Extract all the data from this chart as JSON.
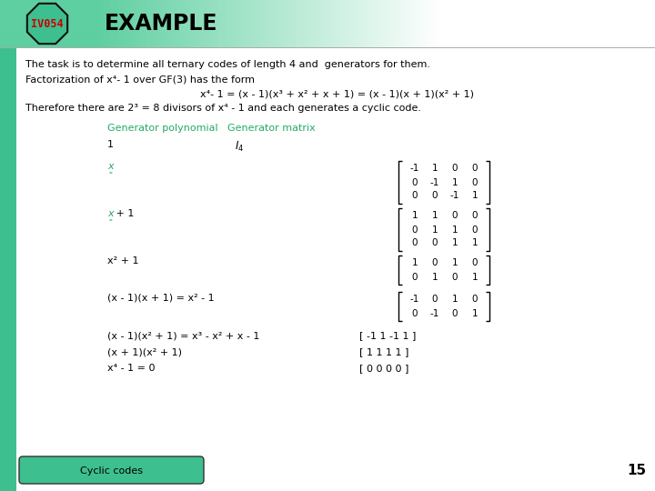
{
  "title_label": "IV054",
  "title_text": "EXAMPLE",
  "bg_color": "#ffffff",
  "header_bg": "#5ecfa0",
  "octagon_fill": "#3dbf8f",
  "octagon_border": "#111111",
  "title_color": "#cc0000",
  "green_text_color": "#22aa66",
  "footer_bg": "#3dbf8f",
  "footer_text": "Cyclic codes",
  "page_number": "15",
  "sidebar_color": "#3dbf8f"
}
